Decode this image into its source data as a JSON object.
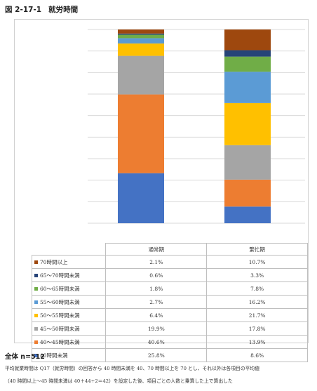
{
  "figure": {
    "number": "図 2-17-1",
    "title": "就労時間"
  },
  "chart_data": {
    "type": "bar",
    "stacked": true,
    "normalized_to": 100,
    "categories": [
      "通常期",
      "繁忙期"
    ],
    "series": [
      {
        "name": "40時間未満",
        "color": "#4472c4",
        "values": [
          25.8,
          8.6
        ],
        "labels": [
          "25.8%",
          "8.6%"
        ]
      },
      {
        "name": "40～45時間未満",
        "color": "#ed7d31",
        "values": [
          40.6,
          13.9
        ],
        "labels": [
          "40.6%",
          "13.9%"
        ]
      },
      {
        "name": "45～50時間未満",
        "color": "#a5a5a5",
        "values": [
          19.9,
          17.8
        ],
        "labels": [
          "19.9%",
          "17.8%"
        ]
      },
      {
        "name": "50～55時間未満",
        "color": "#ffc000",
        "values": [
          6.4,
          21.7
        ],
        "labels": [
          "6.4%",
          "21.7%"
        ]
      },
      {
        "name": "55～60時間未満",
        "color": "#5b9bd5",
        "values": [
          2.7,
          16.2
        ],
        "labels": [
          "2.7%",
          "16.2%"
        ]
      },
      {
        "name": "60～65時間未満",
        "color": "#70ad47",
        "values": [
          1.8,
          7.8
        ],
        "labels": [
          "1.8%",
          "7.8%"
        ]
      },
      {
        "name": "65～70時間未満",
        "color": "#264478",
        "values": [
          0.6,
          3.3
        ],
        "labels": [
          "0.6%",
          "3.3%"
        ]
      },
      {
        "name": "70時間以上",
        "color": "#9e480e",
        "values": [
          2.1,
          10.7
        ],
        "labels": [
          "2.1%",
          "10.7%"
        ]
      }
    ],
    "ylim": [
      0,
      100
    ],
    "gridlines": 9,
    "legend": "data-table-below"
  },
  "summary": "全体 n=512",
  "notes": [
    "平均就業時間は Q17（就労時間）の回答から 40 時間未満を 40、70 時間以上を 70 とし、それ以外は各項目の平均値",
    "（40 時間以上～45 時間未満は 40＋44÷2＝42）を設定した後、項目ごとの人数と乗算した上で算出した"
  ]
}
